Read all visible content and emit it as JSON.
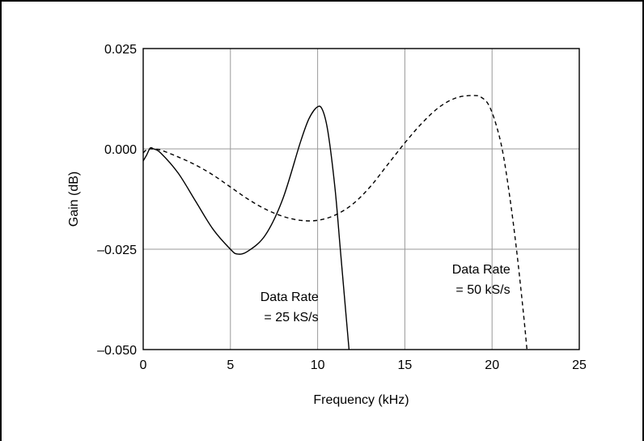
{
  "chart_data": {
    "type": "line",
    "title": "",
    "xlabel": "Frequency (kHz)",
    "ylabel": "Gain (dB)",
    "xlim": [
      0,
      25
    ],
    "ylim": [
      -0.05,
      0.025
    ],
    "grid": true,
    "x_ticks": [
      {
        "value": 0,
        "label": "0"
      },
      {
        "value": 5,
        "label": "5"
      },
      {
        "value": 10,
        "label": "10"
      },
      {
        "value": 15,
        "label": "15"
      },
      {
        "value": 20,
        "label": "20"
      },
      {
        "value": 25,
        "label": "25"
      }
    ],
    "y_ticks": [
      {
        "value": 0.025,
        "label": "0.025"
      },
      {
        "value": 0,
        "label": "0.000"
      },
      {
        "value": -0.025,
        "label": "–0.025"
      },
      {
        "value": -0.05,
        "label": "–0.050"
      }
    ],
    "series": [
      {
        "style": "solid",
        "x": [
          0,
          0.2,
          0.4,
          0.6,
          1,
          2,
          3,
          4,
          5,
          5.4,
          6,
          7,
          8,
          9,
          9.5,
          10,
          10.3,
          10.6,
          11,
          11.3,
          11.6,
          11.8
        ],
        "y": [
          -0.003,
          -0.0015,
          0.0002,
          0,
          -0.001,
          -0.006,
          -0.013,
          -0.02,
          -0.025,
          -0.0262,
          -0.0255,
          -0.0215,
          -0.0125,
          0.0015,
          0.0075,
          0.0105,
          0.0095,
          0.004,
          -0.01,
          -0.025,
          -0.04,
          -0.05
        ]
      },
      {
        "style": "dashed",
        "x": [
          0,
          0.2,
          0.5,
          1,
          2,
          3,
          4,
          5,
          6,
          7,
          8,
          9,
          10,
          11,
          12,
          13,
          14,
          15,
          16,
          17,
          18,
          19,
          19.4,
          19.8,
          20.2,
          20.6,
          21,
          21.4,
          21.8,
          22
        ],
        "y": [
          -0.001,
          -0.0002,
          0,
          -0.0003,
          -0.002,
          -0.004,
          -0.0065,
          -0.0095,
          -0.0125,
          -0.015,
          -0.0168,
          -0.0178,
          -0.0178,
          -0.0165,
          -0.0138,
          -0.0095,
          -0.004,
          0.0015,
          0.0065,
          0.0105,
          0.0128,
          0.0133,
          0.0128,
          0.011,
          0.0065,
          -0.0005,
          -0.0115,
          -0.025,
          -0.041,
          -0.05
        ]
      }
    ],
    "annotations": [
      {
        "lines": [
          "Data Rate",
          "= 25 kS/s"
        ]
      },
      {
        "lines": [
          "Data Rate",
          "= 50 kS/s"
        ]
      }
    ]
  }
}
